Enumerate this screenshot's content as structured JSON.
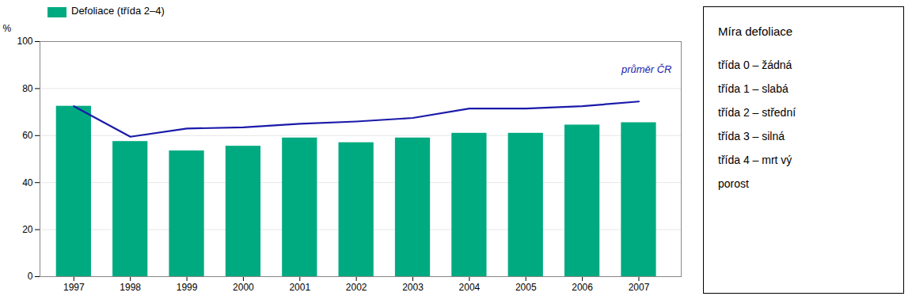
{
  "chart_data": {
    "type": "bar",
    "x": [
      1997,
      1998,
      1999,
      2000,
      2001,
      2002,
      2003,
      2004,
      2005,
      2006,
      2007
    ],
    "xlim": [
      1996.4,
      2007.75
    ],
    "xticks": [
      1997,
      1998,
      1999,
      2000,
      2001,
      2002,
      2003,
      2004,
      2005,
      2006,
      2007
    ],
    "ylabel": "%",
    "ylim": [
      0,
      100
    ],
    "yticks": [
      0,
      20,
      40,
      60,
      80,
      100
    ],
    "grid": true,
    "legend": "upper left",
    "series": [
      {
        "name": "Defoliace (třída 2–4)",
        "type": "bar",
        "color": "#00AA80",
        "values": [
          72.5,
          57.5,
          53.5,
          55.5,
          59.0,
          57.0,
          59.0,
          61.0,
          61.0,
          64.5,
          65.5
        ]
      },
      {
        "name": "průměr ČR",
        "type": "line",
        "color": "#1a1aaa",
        "values": [
          72.5,
          59.5,
          63.0,
          63.5,
          65.0,
          66.0,
          67.5,
          71.5,
          71.5,
          72.5,
          74.5
        ]
      }
    ],
    "annotations": [
      {
        "title": "Míra defoliace",
        "lines": [
          "třída 0 – žádná",
          "třída 1 – slabá",
          "třída 2 – střední",
          "třída 3 – silná",
          "třída 4 – mrt vý",
          "porost"
        ]
      }
    ]
  }
}
